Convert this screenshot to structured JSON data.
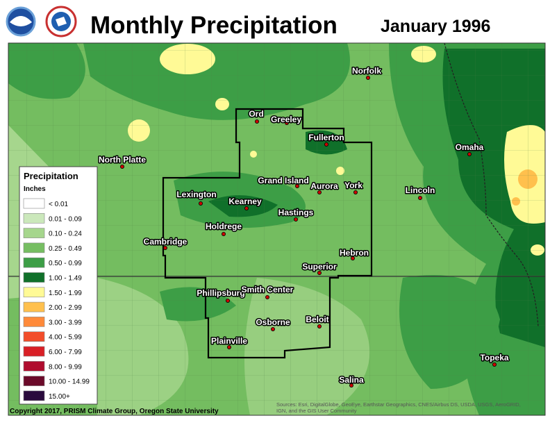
{
  "header": {
    "title": "Monthly Precipitation",
    "date": "January 1996"
  },
  "cities": [
    "Norfolk",
    "Ord",
    "Greeley",
    "Fullerton",
    "North Platte",
    "Omaha",
    "Grand Island",
    "Aurora",
    "York",
    "Lincoln",
    "Lexington",
    "Kearney",
    "Hastings",
    "Holdrege",
    "Cambridge",
    "Hebron",
    "Superior",
    "Phillipsburg",
    "Smith Center",
    "Beloit",
    "Osborne",
    "Plainville",
    "Topeka",
    "Salina"
  ],
  "legend": {
    "title": "Precipitation",
    "units": "Inches",
    "items": [
      {
        "label": "< 0.01",
        "color": "#ffffff"
      },
      {
        "label": "0.01 - 0.09",
        "color": "#cbe8bb"
      },
      {
        "label": "0.10 - 0.24",
        "color": "#a6d68d"
      },
      {
        "label": "0.25 - 0.49",
        "color": "#76be62"
      },
      {
        "label": "0.50 - 0.99",
        "color": "#3d9e46"
      },
      {
        "label": "1.00 - 1.49",
        "color": "#10702a"
      },
      {
        "label": "1.50 - 1.99",
        "color": "#fffa96"
      },
      {
        "label": "2.00 - 2.99",
        "color": "#ffc04d"
      },
      {
        "label": "3.00 - 3.99",
        "color": "#ff8a3a"
      },
      {
        "label": "4.00 - 5.99",
        "color": "#f24d2a"
      },
      {
        "label": "6.00 - 7.99",
        "color": "#d91f26"
      },
      {
        "label": "8.00 - 9.99",
        "color": "#b00c2e"
      },
      {
        "label": "10.00 - 14.99",
        "color": "#6b0a2a"
      },
      {
        "label": "15.00+",
        "color": "#2a0a3d"
      }
    ]
  },
  "footer": {
    "copyright": "Copyright 2017, PRISM Climate Group, Oregon State University",
    "sources": [
      "Sources: Esri, DigitalGlobe, GeoEye, Earthstar Geographics, CNES/Airbus DS, USDA, USGS, AeroGRID,",
      "IGN, and the GIS User Community"
    ]
  }
}
